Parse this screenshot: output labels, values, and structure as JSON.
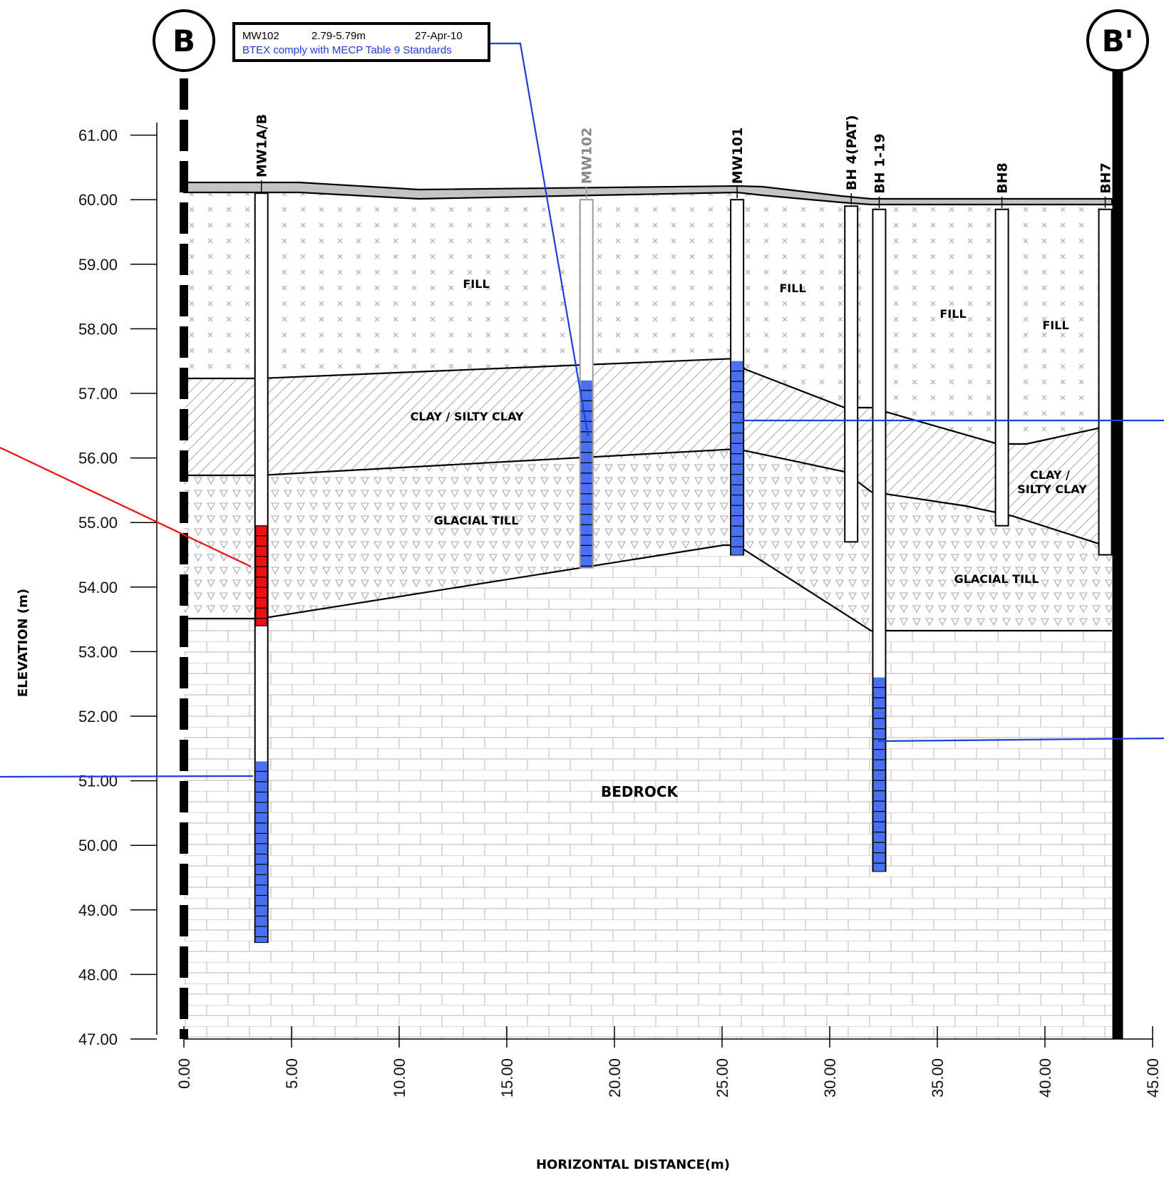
{
  "section": {
    "left_marker": "B",
    "right_marker": "B'"
  },
  "callout": {
    "well": "MW102",
    "interval": "2.79-5.79m",
    "date": "27-Apr-10",
    "note": "BTEX comply with MECP Table 9 Standards",
    "note_color": "#1a3fe0"
  },
  "axes": {
    "ylabel": "ELEVATION (m)",
    "xlabel": "HORIZONTAL DISTANCE(m)",
    "y_ticks": [
      "61.00",
      "60.00",
      "59.00",
      "58.00",
      "57.00",
      "56.00",
      "55.00",
      "54.00",
      "53.00",
      "52.00",
      "51.00",
      "50.00",
      "49.00",
      "48.00",
      "47.00"
    ],
    "x_ticks": [
      "0.00",
      "5.00",
      "10.00",
      "15.00",
      "20.00",
      "25.00",
      "30.00",
      "35.00",
      "40.00",
      "45.00"
    ],
    "y_range": [
      47,
      61
    ],
    "x_range": [
      0,
      45
    ]
  },
  "layers": {
    "fill": "FILL",
    "clay": "CLAY / SILTY CLAY",
    "clay_line1": "CLAY /",
    "clay_line2": "SILTY CLAY",
    "till": "GLACIAL TILL",
    "bedrock": "BEDROCK"
  },
  "wells": [
    {
      "name": "MW1A/B",
      "x": 3.6,
      "top": 60.1,
      "bottom": 48.5,
      "screens": [
        {
          "from": 51.3,
          "to": 48.5,
          "color": "#4a6ff0"
        }
      ],
      "exceed": {
        "from": 54.95,
        "to": 53.4,
        "color": "#ee1111"
      }
    },
    {
      "name": "MW102",
      "x": 18.7,
      "top": 60.0,
      "bottom": 54.3,
      "muted": true,
      "screens": [
        {
          "from": 57.2,
          "to": 54.3,
          "color": "#4a6ff0"
        }
      ]
    },
    {
      "name": "MW101",
      "x": 25.7,
      "top": 60.0,
      "bottom": 54.5,
      "screens": [
        {
          "from": 57.5,
          "to": 54.5,
          "color": "#4a6ff0"
        }
      ]
    },
    {
      "name": "BH 4(PAT)",
      "x": 31.0,
      "top": 59.9,
      "bottom": 54.7,
      "screens": []
    },
    {
      "name": "BH 1-19",
      "x": 32.3,
      "top": 59.85,
      "bottom": 49.6,
      "screens": [
        {
          "from": 52.6,
          "to": 49.6,
          "color": "#4a6ff0"
        }
      ]
    },
    {
      "name": "BH8",
      "x": 38.0,
      "top": 59.85,
      "bottom": 54.95,
      "screens": []
    },
    {
      "name": "BH7",
      "x": 42.8,
      "top": 59.85,
      "bottom": 54.5,
      "screens": []
    }
  ],
  "colors": {
    "screen": "#4a6ff0",
    "exceedance": "#ee1111",
    "groundwater": "#1a3fe0",
    "pattern": "#aaaaaa"
  }
}
